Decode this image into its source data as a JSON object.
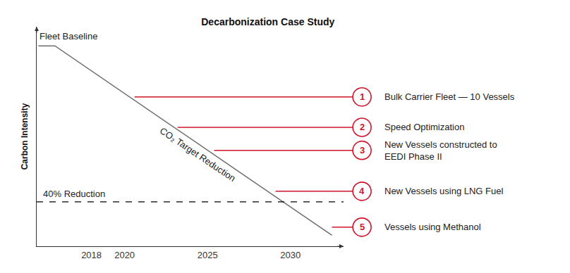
{
  "chart_data": {
    "type": "line",
    "title": "Decarbonization Case Study",
    "y_label": "Carbon Intensity",
    "xlim": [
      2014.7,
      2033.2
    ],
    "xticks": [
      2018,
      2020,
      2025,
      2030
    ],
    "ylim": [
      48.6,
      104.9
    ],
    "tick_labels": "x",
    "grid": false,
    "series": [
      {
        "name": "CO₂ Target Reduction",
        "x": [
          2014.8,
          2015.8,
          2032.5
        ],
        "values": [
          100,
          100,
          51.4
        ],
        "color": "#6e6e6e"
      }
    ],
    "annotations": [
      {
        "text": "Fleet Baseline",
        "x": 2014.8,
        "y": 100
      },
      {
        "text": "CO₂ Target Reduction",
        "x": 2024.4,
        "y": 72.1
      }
    ],
    "reference": {
      "label": "40% Reduction",
      "value": 60,
      "color": "#000000",
      "line_style": "dashed"
    },
    "callouts": [
      {
        "number": 1,
        "text": [
          "Bulk Carrier Fleet — 10 Vessels"
        ],
        "x": 2020.6,
        "value": 86.9,
        "color": "#d0152b"
      },
      {
        "number": 2,
        "text": [
          "Speed Optimization"
        ],
        "x": 2023.2,
        "value": 79.1,
        "color": "#d0152b"
      },
      {
        "number": 3,
        "text": [
          "New Vessels constructed to",
          "EEDI Phase II"
        ],
        "x": 2025.4,
        "value": 73.2,
        "color": "#d0152b"
      },
      {
        "number": 4,
        "text": [
          "New Vessels using LNG Fuel"
        ],
        "x": 2029.1,
        "value": 62.7,
        "color": "#d0152b"
      },
      {
        "number": 5,
        "text": [
          "Vessels using Methanol"
        ],
        "x": 2032.5,
        "value": 53.5,
        "color": "#d0152b"
      }
    ]
  }
}
